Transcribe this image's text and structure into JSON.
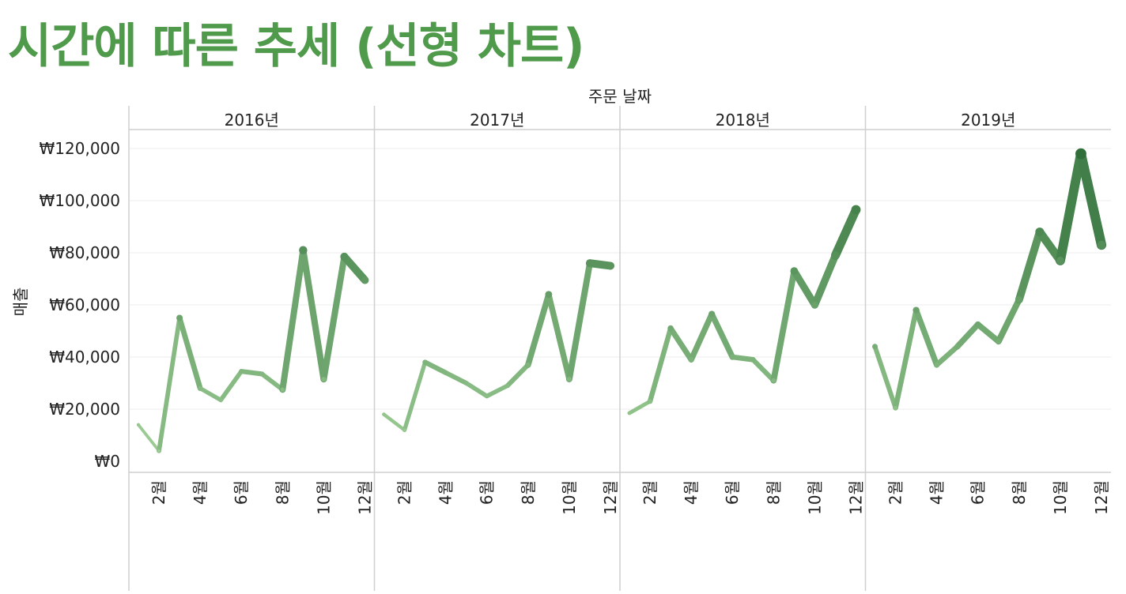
{
  "title": "시간에 따른 추세 (선형 차트)",
  "chart_data": {
    "type": "line",
    "title": "시간에 따른 추세 (선형 차트)",
    "column_header": "주문 날짜",
    "ylabel": "매출",
    "ylim": [
      0,
      120000
    ],
    "yticks": [
      0,
      20000,
      40000,
      60000,
      80000,
      100000,
      120000
    ],
    "ytick_labels": [
      "₩0",
      "₩20,000",
      "₩40,000",
      "₩60,000",
      "₩80,000",
      "₩100,000",
      "₩120,000"
    ],
    "xtick_months": [
      2,
      4,
      6,
      8,
      10,
      12
    ],
    "xtick_labels": [
      "2월",
      "4월",
      "6월",
      "8월",
      "10월",
      "12월"
    ],
    "grid": true,
    "color_scale": [
      "#a3d39a",
      "#2f6e39"
    ],
    "months": [
      1,
      2,
      3,
      4,
      5,
      6,
      7,
      8,
      9,
      10,
      11,
      12
    ],
    "panels": [
      {
        "label": "2016년",
        "values": [
          14000,
          4000,
          55000,
          28000,
          23500,
          34500,
          33500,
          27500,
          81000,
          31500,
          78500,
          69500
        ]
      },
      {
        "label": "2017년",
        "values": [
          18000,
          12000,
          38000,
          34000,
          30000,
          25000,
          29000,
          37000,
          64000,
          31500,
          76000,
          75000
        ]
      },
      {
        "label": "2018년",
        "values": [
          18500,
          23000,
          51000,
          39000,
          56500,
          40000,
          39000,
          31000,
          73000,
          60000,
          79000,
          96500
        ]
      },
      {
        "label": "2019년",
        "values": [
          44000,
          20500,
          58000,
          37000,
          44000,
          52500,
          46000,
          62000,
          88000,
          77000,
          118000,
          83000
        ]
      }
    ]
  }
}
